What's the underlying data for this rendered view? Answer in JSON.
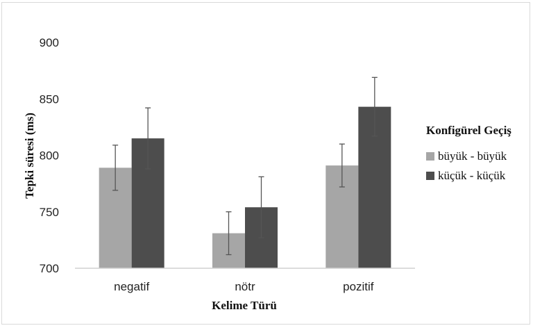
{
  "chart_data": {
    "type": "bar",
    "categories": [
      "negatif",
      "nötr",
      "pozitif"
    ],
    "xlabel": "Kelime Türü",
    "ylabel": "Tepki süresi (ms)",
    "ylim": [
      700,
      900
    ],
    "yticks": [
      700,
      750,
      800,
      850,
      900
    ],
    "grid": false,
    "legend": {
      "title": "Konfigürel Geçiş",
      "position": "right"
    },
    "series": [
      {
        "name": "büyük - büyük",
        "color": "#a6a6a6",
        "values": [
          789,
          731,
          791
        ],
        "error": [
          20,
          19,
          19
        ]
      },
      {
        "name": "küçük - küçük",
        "color": "#4d4d4d",
        "values": [
          815,
          754,
          843
        ],
        "error": [
          27,
          27,
          26
        ]
      }
    ]
  }
}
